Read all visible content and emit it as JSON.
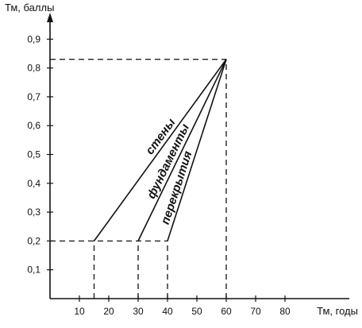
{
  "chart_data": {
    "type": "line",
    "title": "",
    "xlabel": "Тм, годы",
    "ylabel": "Тм, баллы",
    "xlim": [
      0,
      90
    ],
    "ylim": [
      0,
      1.0
    ],
    "xticks": [
      10,
      20,
      30,
      40,
      50,
      60,
      70,
      80
    ],
    "xtick_labels": [
      "10",
      "20",
      "30",
      "40",
      "50",
      "60",
      "70",
      "80"
    ],
    "yticks": [
      0.1,
      0.2,
      0.3,
      0.4,
      0.5,
      0.6,
      0.7,
      0.8,
      0.9
    ],
    "ytick_labels": [
      "0,1",
      "0,2",
      "0,3",
      "0,4",
      "0,5",
      "0,6",
      "0,7",
      "0,8",
      "0,9"
    ],
    "grid": false,
    "series": [
      {
        "name": "стены",
        "x": [
          15,
          60
        ],
        "y": [
          0.2,
          0.83
        ]
      },
      {
        "name": "фундаменты",
        "x": [
          30,
          60
        ],
        "y": [
          0.2,
          0.83
        ]
      },
      {
        "name": "перекрытия",
        "x": [
          40,
          60
        ],
        "y": [
          0.2,
          0.83
        ]
      }
    ],
    "reference_lines": [
      {
        "kind": "horizontal",
        "y": 0.83,
        "x_from": 0,
        "x_to": 60
      },
      {
        "kind": "vertical",
        "x": 60,
        "y_from": 0,
        "y_to": 0.83
      },
      {
        "kind": "horizontal",
        "y": 0.2,
        "x_from": 0,
        "x_to": 40
      },
      {
        "kind": "vertical",
        "x": 15,
        "y_from": 0,
        "y_to": 0.2
      },
      {
        "kind": "vertical",
        "x": 30,
        "y_from": 0,
        "y_to": 0.2
      },
      {
        "kind": "vertical",
        "x": 40,
        "y_from": 0,
        "y_to": 0.2
      }
    ]
  }
}
